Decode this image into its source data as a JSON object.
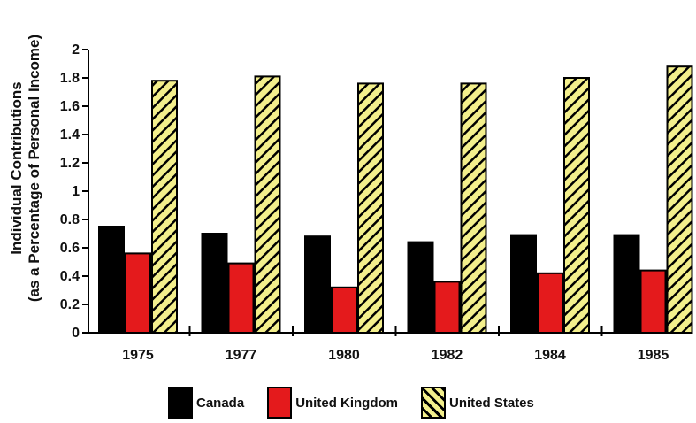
{
  "chart_data": {
    "type": "bar",
    "ylabel_line1": "Individual Contributions",
    "ylabel_line2": "(as a Percentage of Personal Income)",
    "xlabel": "",
    "categories": [
      "1975",
      "1977",
      "1980",
      "1982",
      "1984",
      "1985"
    ],
    "ylim": [
      0,
      2
    ],
    "yticks": [
      "0",
      "0.2",
      "0.4",
      "0.6",
      "0.8",
      "1",
      "1.2",
      "1.4",
      "1.6",
      "1.8",
      "2"
    ],
    "grid": false,
    "legend_position": "bottom",
    "series": [
      {
        "name": "Canada",
        "values": [
          0.75,
          0.7,
          0.68,
          0.64,
          0.69,
          0.69
        ],
        "color": "#000000",
        "pattern": "solid"
      },
      {
        "name": "United Kingdom",
        "values": [
          0.56,
          0.49,
          0.32,
          0.36,
          0.42,
          0.44
        ],
        "color": "#e41a1c",
        "pattern": "solid"
      },
      {
        "name": "United States",
        "values": [
          1.78,
          1.81,
          1.76,
          1.76,
          1.8,
          1.88
        ],
        "color": "#f3ef8c",
        "pattern": "diagonal-hatch"
      }
    ]
  }
}
